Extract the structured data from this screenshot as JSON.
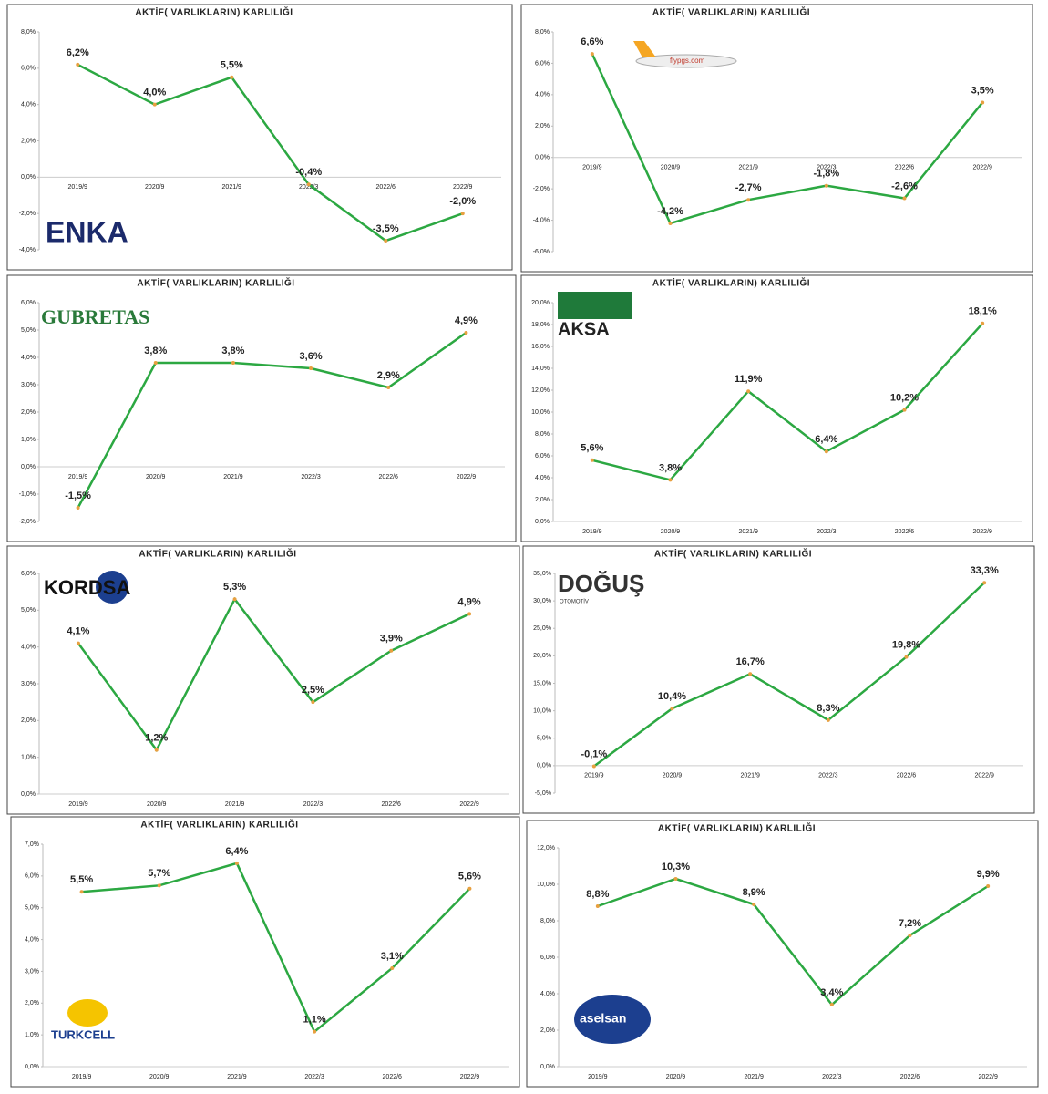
{
  "chart_data": [
    {
      "type": "line",
      "title": "AKTİF( VARLIKLARIN) KARLILIĞI",
      "logo": "ENKA",
      "categories": [
        "2019/9",
        "2020/9",
        "2021/9",
        "2022/3",
        "2022/6",
        "2022/9"
      ],
      "series": [
        {
          "name": "ENKA",
          "color": "#2ca842",
          "marker_color": "#e8a040",
          "values": [
            6.2,
            4.0,
            5.5,
            -0.4,
            -3.5,
            -2.0
          ],
          "value_labels": [
            "6,2%",
            "4,0%",
            "5,5%",
            "-0,4%",
            "-3,5%",
            "-2,0%"
          ]
        }
      ],
      "ylim": [
        -4,
        8
      ],
      "yticks": [
        {
          "value": -4,
          "label": "-4,0%"
        },
        {
          "value": -2,
          "label": "-2,0%"
        },
        {
          "value": 0,
          "label": "0,0%"
        },
        {
          "value": 2,
          "label": "2,0%"
        },
        {
          "value": 4,
          "label": "4,0%"
        },
        {
          "value": 6,
          "label": "6,0%"
        },
        {
          "value": 8,
          "label": "8,0%"
        }
      ]
    },
    {
      "type": "line",
      "title": "AKTİF( VARLIKLARIN) KARLILIĞI",
      "logo": "flypgs.com",
      "categories": [
        "2019/9",
        "2020/9",
        "2021/9",
        "2022/3",
        "2022/6",
        "2022/9"
      ],
      "series": [
        {
          "name": "Pegasus",
          "color": "#2ca842",
          "marker_color": "#e8a040",
          "values": [
            6.6,
            -4.2,
            -2.7,
            -1.8,
            -2.6,
            3.5
          ],
          "value_labels": [
            "6,6%",
            "-4,2%",
            "-2,7%",
            "-1,8%",
            "-2,6%",
            "3,5%"
          ]
        }
      ],
      "ylim": [
        -6,
        8
      ],
      "yticks": [
        {
          "value": -6,
          "label": "-6,0%"
        },
        {
          "value": -4,
          "label": "-4,0%"
        },
        {
          "value": -2,
          "label": "-2,0%"
        },
        {
          "value": 0,
          "label": "0,0%"
        },
        {
          "value": 2,
          "label": "2,0%"
        },
        {
          "value": 4,
          "label": "4,0%"
        },
        {
          "value": 6,
          "label": "6,0%"
        },
        {
          "value": 8,
          "label": "8,0%"
        }
      ]
    },
    {
      "type": "line",
      "title": "AKTİF( VARLIKLARIN) KARLILIĞI",
      "logo": "GUBRETAS",
      "categories": [
        "2019/9",
        "2020/9",
        "2021/9",
        "2022/3",
        "2022/6",
        "2022/9"
      ],
      "series": [
        {
          "name": "GUBRETAS",
          "color": "#2ca842",
          "marker_color": "#e8a040",
          "values": [
            -1.5,
            3.8,
            3.8,
            3.6,
            2.9,
            4.9
          ],
          "value_labels": [
            "-1,5%",
            "3,8%",
            "3,8%",
            "3,6%",
            "2,9%",
            "4,9%"
          ]
        }
      ],
      "ylim": [
        -2,
        6
      ],
      "yticks": [
        {
          "value": -2,
          "label": "-2,0%"
        },
        {
          "value": -1,
          "label": "-1,0%"
        },
        {
          "value": 0,
          "label": "0,0%"
        },
        {
          "value": 1,
          "label": "1,0%"
        },
        {
          "value": 2,
          "label": "2,0%"
        },
        {
          "value": 3,
          "label": "3,0%"
        },
        {
          "value": 4,
          "label": "4,0%"
        },
        {
          "value": 5,
          "label": "5,0%"
        },
        {
          "value": 6,
          "label": "6,0%"
        }
      ]
    },
    {
      "type": "line",
      "title": "AKTİF( VARLIKLARIN) KARLILIĞI",
      "logo": "AKSA",
      "categories": [
        "2019/9",
        "2020/9",
        "2021/9",
        "2022/3",
        "2022/6",
        "2022/9"
      ],
      "series": [
        {
          "name": "AKSA",
          "color": "#2ca842",
          "marker_color": "#e8a040",
          "values": [
            5.6,
            3.8,
            11.9,
            6.4,
            10.2,
            18.1
          ],
          "value_labels": [
            "5,6%",
            "3,8%",
            "11,9%",
            "6,4%",
            "10,2%",
            "18,1%"
          ]
        }
      ],
      "ylim": [
        0,
        20
      ],
      "yticks": [
        {
          "value": 0,
          "label": "0,0%"
        },
        {
          "value": 2,
          "label": "2,0%"
        },
        {
          "value": 4,
          "label": "4,0%"
        },
        {
          "value": 6,
          "label": "6,0%"
        },
        {
          "value": 8,
          "label": "8,0%"
        },
        {
          "value": 10,
          "label": "10,0%"
        },
        {
          "value": 12,
          "label": "12,0%"
        },
        {
          "value": 14,
          "label": "14,0%"
        },
        {
          "value": 16,
          "label": "16,0%"
        },
        {
          "value": 18,
          "label": "18,0%"
        },
        {
          "value": 20,
          "label": "20,0%"
        }
      ]
    },
    {
      "type": "line",
      "title": "AKTİF( VARLIKLARIN) KARLILIĞI",
      "logo": "KORDSA",
      "categories": [
        "2019/9",
        "2020/9",
        "2021/9",
        "2022/3",
        "2022/6",
        "2022/9"
      ],
      "series": [
        {
          "name": "KORDSA",
          "color": "#2ca842",
          "marker_color": "#e8a040",
          "values": [
            4.1,
            1.2,
            5.3,
            2.5,
            3.9,
            4.9
          ],
          "value_labels": [
            "4,1%",
            "1,2%",
            "5,3%",
            "2,5%",
            "3,9%",
            "4,9%"
          ]
        }
      ],
      "ylim": [
        0,
        6
      ],
      "yticks": [
        {
          "value": 0,
          "label": "0,0%"
        },
        {
          "value": 1,
          "label": "1,0%"
        },
        {
          "value": 2,
          "label": "2,0%"
        },
        {
          "value": 3,
          "label": "3,0%"
        },
        {
          "value": 4,
          "label": "4,0%"
        },
        {
          "value": 5,
          "label": "5,0%"
        },
        {
          "value": 6,
          "label": "6,0%"
        }
      ]
    },
    {
      "type": "line",
      "title": "AKTİF( VARLIKLARIN) KARLILIĞI",
      "logo": "DOĞUŞ",
      "logo_subtitle": "OTOMOTİV",
      "categories": [
        "2019/9",
        "2020/9",
        "2021/9",
        "2022/3",
        "2022/6",
        "2022/9"
      ],
      "series": [
        {
          "name": "DOĞUŞ",
          "color": "#2ca842",
          "marker_color": "#e8a040",
          "values": [
            -0.1,
            10.4,
            16.7,
            8.3,
            19.8,
            33.3
          ],
          "value_labels": [
            "-0,1%",
            "10,4%",
            "16,7%",
            "8,3%",
            "19,8%",
            "33,3%"
          ]
        }
      ],
      "ylim": [
        -5,
        35
      ],
      "yticks": [
        {
          "value": -5,
          "label": "-5,0%"
        },
        {
          "value": 0,
          "label": "0,0%"
        },
        {
          "value": 5,
          "label": "5,0%"
        },
        {
          "value": 10,
          "label": "10,0%"
        },
        {
          "value": 15,
          "label": "15,0%"
        },
        {
          "value": 20,
          "label": "20,0%"
        },
        {
          "value": 25,
          "label": "25,0%"
        },
        {
          "value": 30,
          "label": "30,0%"
        },
        {
          "value": 35,
          "label": "35,0%"
        }
      ]
    },
    {
      "type": "line",
      "title": "AKTİF( VARLIKLARIN) KARLILIĞI",
      "logo": "TURKCELL",
      "categories": [
        "2019/9",
        "2020/9",
        "2021/9",
        "2022/3",
        "2022/6",
        "2022/9"
      ],
      "series": [
        {
          "name": "TURKCELL",
          "color": "#2ca842",
          "marker_color": "#e8a040",
          "values": [
            5.5,
            5.7,
            6.4,
            1.1,
            3.1,
            5.6
          ],
          "value_labels": [
            "5,5%",
            "5,7%",
            "6,4%",
            "1,1%",
            "3,1%",
            "5,6%"
          ]
        }
      ],
      "ylim": [
        0,
        7
      ],
      "yticks": [
        {
          "value": 0,
          "label": "0,0%"
        },
        {
          "value": 1,
          "label": "1,0%"
        },
        {
          "value": 2,
          "label": "2,0%"
        },
        {
          "value": 3,
          "label": "3,0%"
        },
        {
          "value": 4,
          "label": "4,0%"
        },
        {
          "value": 5,
          "label": "5,0%"
        },
        {
          "value": 6,
          "label": "6,0%"
        },
        {
          "value": 7,
          "label": "7,0%"
        }
      ]
    },
    {
      "type": "line",
      "title": "AKTİF( VARLIKLARIN) KARLILIĞI",
      "logo": "aselsan",
      "categories": [
        "2019/9",
        "2020/9",
        "2021/9",
        "2022/3",
        "2022/6",
        "2022/9"
      ],
      "series": [
        {
          "name": "aselsan",
          "color": "#2ca842",
          "marker_color": "#e8a040",
          "values": [
            8.8,
            10.3,
            8.9,
            3.4,
            7.2,
            9.9
          ],
          "value_labels": [
            "8,8%",
            "10,3%",
            "8,9%",
            "3,4%",
            "7,2%",
            "9,9%"
          ]
        }
      ],
      "ylim": [
        0,
        12
      ],
      "yticks": [
        {
          "value": 0,
          "label": "0,0%"
        },
        {
          "value": 2,
          "label": "2,0%"
        },
        {
          "value": 4,
          "label": "4,0%"
        },
        {
          "value": 6,
          "label": "6,0%"
        },
        {
          "value": 8,
          "label": "8,0%"
        },
        {
          "value": 10,
          "label": "10,0%"
        },
        {
          "value": 12,
          "label": "12,0%"
        }
      ]
    }
  ]
}
